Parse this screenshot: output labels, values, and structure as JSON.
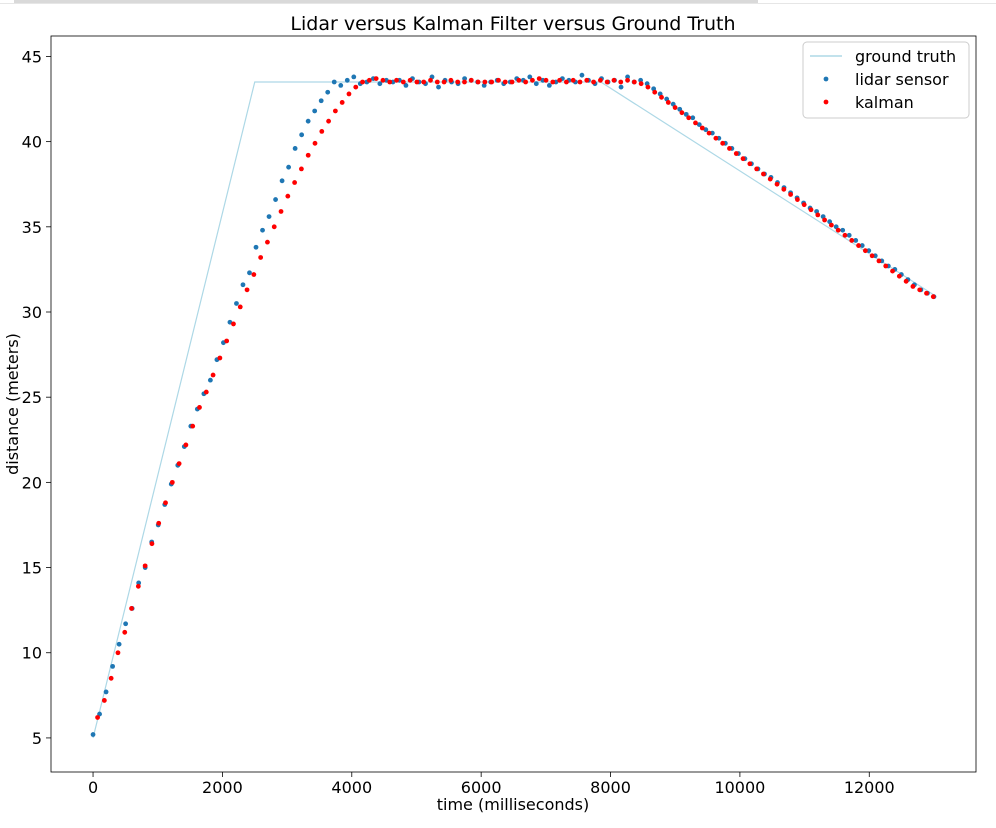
{
  "chart_data": {
    "type": "scatter",
    "title": "Lidar versus Kalman Filter versus Ground Truth",
    "xlabel": "time (milliseconds)",
    "ylabel": "distance (meters)",
    "xlim": [
      -650,
      13650
    ],
    "ylim": [
      3,
      46.2
    ],
    "xticks": [
      0,
      2000,
      4000,
      6000,
      8000,
      10000,
      12000
    ],
    "yticks": [
      5,
      10,
      15,
      20,
      25,
      30,
      35,
      40,
      45
    ],
    "grid": false,
    "legend_position": "top-right",
    "colors": {
      "ground_truth": "#add8e6",
      "lidar": "#1f77b4",
      "kalman": "#ff0000"
    },
    "series": [
      {
        "name": "ground truth",
        "kind": "line",
        "x": [
          0,
          2500,
          7850,
          13000
        ],
        "y": [
          5.0,
          43.5,
          43.5,
          31.0
        ]
      },
      {
        "name": "lidar sensor",
        "kind": "scatter",
        "x_start": 0,
        "x_end": 13000,
        "y": [
          5.2,
          6.4,
          7.7,
          9.2,
          10.5,
          11.7,
          12.6,
          14.1,
          15.0,
          16.5,
          17.5,
          18.7,
          19.9,
          21.0,
          22.1,
          23.3,
          24.3,
          25.2,
          26.0,
          27.2,
          28.2,
          29.4,
          30.5,
          31.6,
          32.3,
          33.8,
          34.8,
          35.6,
          36.6,
          37.7,
          38.5,
          39.6,
          40.4,
          41.2,
          41.8,
          42.4,
          42.9,
          43.5,
          43.3,
          43.6,
          43.8,
          43.4,
          43.5,
          43.7,
          43.4,
          43.6,
          43.5,
          43.6,
          43.3,
          43.7,
          43.5,
          43.4,
          43.8,
          43.2,
          43.6,
          43.5,
          43.4,
          43.7,
          43.6,
          43.5,
          43.3,
          43.5,
          43.6,
          43.4,
          43.5,
          43.7,
          43.6,
          43.8,
          43.4,
          43.6,
          43.3,
          43.5,
          43.7,
          43.6,
          43.5,
          43.9,
          43.6,
          43.4,
          43.7,
          43.5,
          43.6,
          43.2,
          43.8,
          43.5,
          43.6,
          43.4,
          43.1,
          42.8,
          42.5,
          42.2,
          41.9,
          41.6,
          41.4,
          41.0,
          40.7,
          40.5,
          40.2,
          39.9,
          39.6,
          39.3,
          39.0,
          38.7,
          38.4,
          38.1,
          37.9,
          37.6,
          37.3,
          37.0,
          36.7,
          36.4,
          36.1,
          35.9,
          35.6,
          35.3,
          35.0,
          34.8,
          34.5,
          34.2,
          33.9,
          33.6,
          33.3,
          33.0,
          32.7,
          32.5,
          32.2,
          31.9,
          31.6,
          31.3,
          31.1,
          30.9
        ]
      },
      {
        "name": "kalman",
        "kind": "scatter",
        "x_start": 70,
        "x_end": 12990,
        "y": [
          6.2,
          7.2,
          8.5,
          10.0,
          11.2,
          12.6,
          13.9,
          15.1,
          16.4,
          17.6,
          18.8,
          20.0,
          21.1,
          22.2,
          23.3,
          24.4,
          25.3,
          26.3,
          27.3,
          28.3,
          29.3,
          30.3,
          31.3,
          32.2,
          33.2,
          34.1,
          35.0,
          35.9,
          36.8,
          37.6,
          38.4,
          39.2,
          39.9,
          40.6,
          41.2,
          41.8,
          42.3,
          42.8,
          43.2,
          43.5,
          43.6,
          43.7,
          43.6,
          43.5,
          43.6,
          43.5,
          43.6,
          43.5,
          43.5,
          43.6,
          43.5,
          43.5,
          43.6,
          43.5,
          43.5,
          43.6,
          43.5,
          43.5,
          43.5,
          43.6,
          43.5,
          43.5,
          43.6,
          43.5,
          43.6,
          43.7,
          43.6,
          43.5,
          43.6,
          43.5,
          43.6,
          43.5,
          43.6,
          43.5,
          43.6,
          43.5,
          43.6,
          43.5,
          43.6,
          43.5,
          43.4,
          43.2,
          42.9,
          42.6,
          42.3,
          42.0,
          41.7,
          41.4,
          41.1,
          40.8,
          40.5,
          40.2,
          39.9,
          39.6,
          39.3,
          39.0,
          38.7,
          38.4,
          38.1,
          37.8,
          37.5,
          37.2,
          36.9,
          36.6,
          36.3,
          36.0,
          35.7,
          35.4,
          35.1,
          34.8,
          34.5,
          34.2,
          33.9,
          33.6,
          33.3,
          33.0,
          32.7,
          32.4,
          32.1,
          31.8,
          31.5,
          31.3,
          31.1,
          30.9
        ]
      }
    ]
  }
}
